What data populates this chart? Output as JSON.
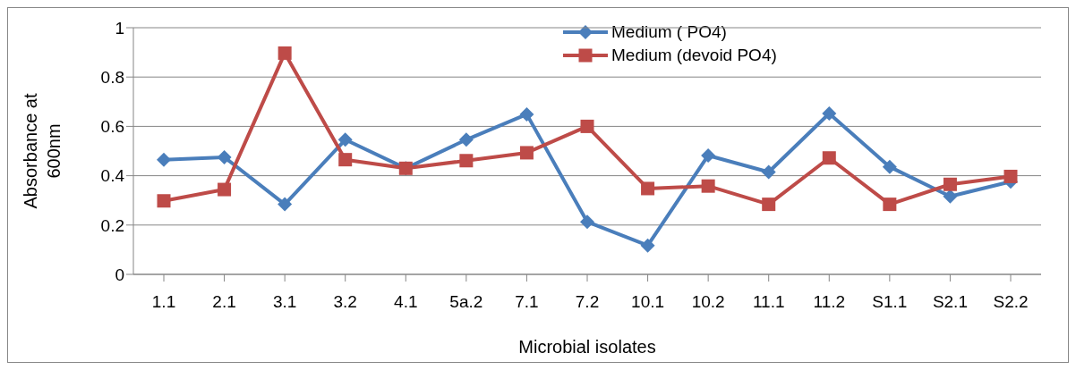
{
  "chart_data": {
    "type": "line",
    "xlabel": "Microbial isolates",
    "ylabel": "Absorbance at 600nm",
    "categories": [
      "1.1",
      "2.1",
      "3.1",
      "3.2",
      "4.1",
      "5a.2",
      "7.1",
      "7.2",
      "10.1",
      "10.2",
      "11.1",
      "11.2",
      "S1.1",
      "S2.1",
      "S2.2"
    ],
    "series": [
      {
        "name": "Medium ( PO4)",
        "color": "#4a7ebb",
        "marker": "diamond",
        "values": [
          0.465,
          0.475,
          0.284,
          0.546,
          0.43,
          0.546,
          0.649,
          0.213,
          0.117,
          0.482,
          0.415,
          0.652,
          0.436,
          0.316,
          0.376
        ]
      },
      {
        "name": "Medium (devoid PO4)",
        "color": "#be4b48",
        "marker": "square",
        "values": [
          0.298,
          0.344,
          0.897,
          0.465,
          0.43,
          0.461,
          0.493,
          0.6,
          0.348,
          0.358,
          0.284,
          0.472,
          0.284,
          0.365,
          0.397
        ]
      }
    ],
    "ylim": [
      0,
      1
    ],
    "yticks": [
      0,
      0.2,
      0.4,
      0.6,
      0.8,
      1
    ],
    "grid": "y",
    "legend": "top",
    "line_style": "solid"
  }
}
